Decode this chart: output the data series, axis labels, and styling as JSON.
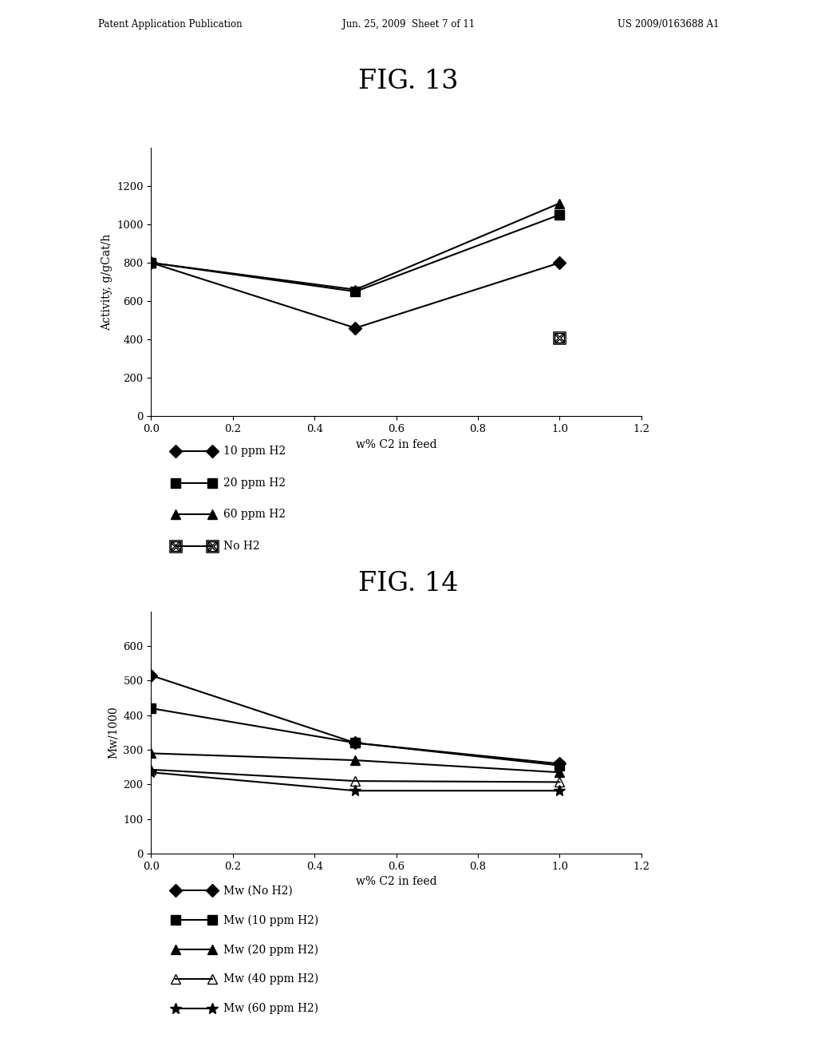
{
  "header_left": "Patent Application Publication",
  "header_center": "Jun. 25, 2009  Sheet 7 of 11",
  "header_right": "US 2009/0163688 A1",
  "fig13": {
    "title": "FIG. 13",
    "xlabel": "w% C2 in feed",
    "ylabel": "Activity, g/gCat/h",
    "xlim": [
      0,
      1.2
    ],
    "ylim": [
      0,
      1400
    ],
    "yticks": [
      0,
      200,
      400,
      600,
      800,
      1000,
      1200
    ],
    "xticks": [
      0.0,
      0.2,
      0.4,
      0.6,
      0.8,
      1.0,
      1.2
    ],
    "series": [
      {
        "label": "10 ppm H2",
        "x": [
          0,
          0.5,
          1.0
        ],
        "y": [
          800,
          460,
          800
        ],
        "marker": "D",
        "markersize": 8,
        "fillstyle": "full",
        "linestyle": "-"
      },
      {
        "label": "20 ppm H2",
        "x": [
          0,
          0.5,
          1.0
        ],
        "y": [
          800,
          650,
          1050
        ],
        "marker": "s",
        "markersize": 8,
        "fillstyle": "full",
        "linestyle": "-"
      },
      {
        "label": "60 ppm H2",
        "x": [
          0,
          0.5,
          1.0
        ],
        "y": [
          800,
          660,
          1110
        ],
        "marker": "^",
        "markersize": 9,
        "fillstyle": "full",
        "linestyle": "-"
      }
    ],
    "special_point": {
      "label": "No H2",
      "x": [
        1.0
      ],
      "y": [
        410
      ],
      "markersize": 11
    },
    "legend": [
      {
        "marker": "D",
        "fillstyle": "full",
        "label": "10 ppm H2"
      },
      {
        "marker": "s",
        "fillstyle": "full",
        "label": "20 ppm H2"
      },
      {
        "marker": "^",
        "fillstyle": "full",
        "label": "60 ppm H2"
      },
      {
        "marker": "boxtimes",
        "fillstyle": "none",
        "label": "No H2"
      }
    ]
  },
  "fig14": {
    "title": "FIG. 14",
    "xlabel": "w% C2 in feed",
    "ylabel": "Mw/1000",
    "xlim": [
      0,
      1.2
    ],
    "ylim": [
      0,
      700
    ],
    "yticks": [
      0,
      100,
      200,
      300,
      400,
      500,
      600
    ],
    "xticks": [
      0.0,
      0.2,
      0.4,
      0.6,
      0.8,
      1.0,
      1.2
    ],
    "series": [
      {
        "label": "Mw (No H2)",
        "x": [
          0,
          0.5,
          1.0
        ],
        "y": [
          515,
          320,
          260
        ],
        "marker": "D",
        "markersize": 8,
        "fillstyle": "full",
        "linestyle": "-"
      },
      {
        "label": "Mw (10 ppm H2)",
        "x": [
          0,
          0.5,
          1.0
        ],
        "y": [
          420,
          320,
          255
        ],
        "marker": "s",
        "markersize": 8,
        "fillstyle": "full",
        "linestyle": "-"
      },
      {
        "label": "Mw (20 ppm H2)",
        "x": [
          0,
          0.5,
          1.0
        ],
        "y": [
          290,
          270,
          235
        ],
        "marker": "^",
        "markersize": 9,
        "fillstyle": "full",
        "linestyle": "-"
      },
      {
        "label": "Mw (40 ppm H2)",
        "x": [
          0,
          0.5,
          1.0
        ],
        "y": [
          243,
          210,
          207
        ],
        "marker": "^",
        "markersize": 9,
        "fillstyle": "none",
        "linestyle": "-"
      },
      {
        "label": "Mw (60 ppm H2)",
        "x": [
          0,
          0.5,
          1.0
        ],
        "y": [
          235,
          182,
          182
        ],
        "marker": "*",
        "markersize": 10,
        "fillstyle": "full",
        "linestyle": "-"
      }
    ],
    "legend": [
      {
        "marker": "D",
        "fillstyle": "full",
        "label": "Mw (No H2)"
      },
      {
        "marker": "s",
        "fillstyle": "full",
        "label": "Mw (10 ppm H2)"
      },
      {
        "marker": "^",
        "fillstyle": "full",
        "label": "Mw (20 ppm H2)"
      },
      {
        "marker": "^",
        "fillstyle": "none",
        "label": "Mw (40 ppm H2)"
      },
      {
        "marker": "*",
        "fillstyle": "full",
        "label": "Mw (60 ppm H2)"
      }
    ]
  }
}
